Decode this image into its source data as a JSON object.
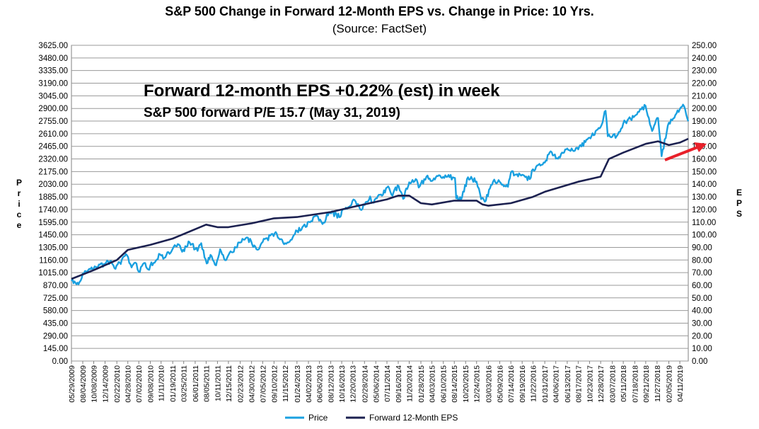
{
  "chart_data": {
    "type": "line",
    "title": "S&P 500 Change in Forward 12-Month EPS vs. Change in Price: 10 Yrs.",
    "subtitle": "(Source: FactSet)",
    "ylabel_left": "Price",
    "ylabel_right": "EPS",
    "ylim_left": [
      0,
      3625
    ],
    "ylim_right": [
      0,
      250
    ],
    "yticks_left": [
      "0.00",
      "145.00",
      "290.00",
      "435.00",
      "580.00",
      "725.00",
      "870.00",
      "1015.00",
      "1160.00",
      "1305.00",
      "1450.00",
      "1595.00",
      "1740.00",
      "1885.00",
      "2030.00",
      "2175.00",
      "2320.00",
      "2465.00",
      "2610.00",
      "2755.00",
      "2900.00",
      "3045.00",
      "3190.00",
      "3335.00",
      "3480.00",
      "3625.00"
    ],
    "yticks_right": [
      "0.00",
      "10.00",
      "20.00",
      "30.00",
      "40.00",
      "50.00",
      "60.00",
      "70.00",
      "80.00",
      "90.00",
      "100.00",
      "110.00",
      "120.00",
      "130.00",
      "140.00",
      "150.00",
      "160.00",
      "170.00",
      "180.00",
      "190.00",
      "200.00",
      "210.00",
      "220.00",
      "230.00",
      "240.00",
      "250.00"
    ],
    "x_dates": [
      "05/29/2009",
      "08/04/2009",
      "10/08/2009",
      "12/14/2009",
      "02/22/2010",
      "04/28/2010",
      "07/02/2010",
      "09/08/2010",
      "11/11/2010",
      "01/19/2011",
      "03/25/2011",
      "06/01/2011",
      "08/05/2011",
      "10/11/2011",
      "12/15/2011",
      "02/23/2012",
      "04/30/2012",
      "07/05/2012",
      "09/10/2012",
      "11/15/2012",
      "01/24/2013",
      "04/02/2013",
      "06/06/2013",
      "08/12/2013",
      "10/16/2013",
      "12/20/2013",
      "02/28/2014",
      "05/06/2014",
      "07/11/2014",
      "09/16/2014",
      "11/20/2014",
      "01/28/2015",
      "04/03/2015",
      "06/10/2015",
      "08/14/2015",
      "10/20/2015",
      "12/24/2015",
      "03/03/2016",
      "05/09/2016",
      "07/14/2016",
      "09/19/2016",
      "11/22/2016",
      "01/31/2017",
      "04/06/2017",
      "06/13/2017",
      "08/17/2017",
      "10/23/2017",
      "12/28/2017",
      "03/07/2018",
      "05/11/2018",
      "07/18/2018",
      "09/21/2018",
      "11/27/2018",
      "02/05/2019",
      "04/11/2019"
    ],
    "series": [
      {
        "name": "Price",
        "axis": "left",
        "color": "#1aa0e0",
        "points": [
          [
            "05/29/2009",
            919
          ],
          [
            "07/10/2009",
            880
          ],
          [
            "08/04/2009",
            1005
          ],
          [
            "10/08/2009",
            1065
          ],
          [
            "12/14/2009",
            1115
          ],
          [
            "01/19/2010",
            1150
          ],
          [
            "02/08/2010",
            1065
          ],
          [
            "04/23/2010",
            1215
          ],
          [
            "05/20/2010",
            1075
          ],
          [
            "06/11/2010",
            1130
          ],
          [
            "07/02/2010",
            1025
          ],
          [
            "08/09/2010",
            1125
          ],
          [
            "08/27/2010",
            1050
          ],
          [
            "09/08/2010",
            1095
          ],
          [
            "11/05/2010",
            1225
          ],
          [
            "11/30/2010",
            1185
          ],
          [
            "01/19/2011",
            1290
          ],
          [
            "02/18/2011",
            1343
          ],
          [
            "03/16/2011",
            1255
          ],
          [
            "04/29/2011",
            1363
          ],
          [
            "06/15/2011",
            1265
          ],
          [
            "07/07/2011",
            1353
          ],
          [
            "08/08/2011",
            1120
          ],
          [
            "08/31/2011",
            1219
          ],
          [
            "10/03/2011",
            1099
          ],
          [
            "10/27/2011",
            1284
          ],
          [
            "11/25/2011",
            1158
          ],
          [
            "12/15/2011",
            1216
          ],
          [
            "02/23/2012",
            1360
          ],
          [
            "04/02/2012",
            1419
          ],
          [
            "06/04/2012",
            1278
          ],
          [
            "07/05/2012",
            1367
          ],
          [
            "09/14/2012",
            1466
          ],
          [
            "11/15/2012",
            1353
          ],
          [
            "12/31/2012",
            1426
          ],
          [
            "01/24/2013",
            1495
          ],
          [
            "04/11/2013",
            1593
          ],
          [
            "05/21/2013",
            1669
          ],
          [
            "06/24/2013",
            1573
          ],
          [
            "08/02/2013",
            1709
          ],
          [
            "10/08/2013",
            1656
          ],
          [
            "10/16/2013",
            1721
          ],
          [
            "12/31/2013",
            1848
          ],
          [
            "02/03/2014",
            1741
          ],
          [
            "04/02/2014",
            1890
          ],
          [
            "04/11/2014",
            1815
          ],
          [
            "05/06/2014",
            1867
          ],
          [
            "07/24/2014",
            1987
          ],
          [
            "08/07/2014",
            1909
          ],
          [
            "09/18/2014",
            2011
          ],
          [
            "10/15/2014",
            1862
          ],
          [
            "11/20/2014",
            2052
          ],
          [
            "12/29/2014",
            2090
          ],
          [
            "01/15/2015",
            1992
          ],
          [
            "03/02/2015",
            2117
          ],
          [
            "04/03/2015",
            2067
          ],
          [
            "05/21/2015",
            2130
          ],
          [
            "08/18/2015",
            2102
          ],
          [
            "08/25/2015",
            1867
          ],
          [
            "09/29/2015",
            1881
          ],
          [
            "11/03/2015",
            2110
          ],
          [
            "12/24/2015",
            2060
          ],
          [
            "01/20/2016",
            1859
          ],
          [
            "02/11/2016",
            1829
          ],
          [
            "03/31/2016",
            2060
          ],
          [
            "05/09/2016",
            2058
          ],
          [
            "06/27/2016",
            2000
          ],
          [
            "07/14/2016",
            2163
          ],
          [
            "09/19/2016",
            2139
          ],
          [
            "11/03/2016",
            2088
          ],
          [
            "11/22/2016",
            2202
          ],
          [
            "01/31/2017",
            2278
          ],
          [
            "03/01/2017",
            2395
          ],
          [
            "04/13/2017",
            2329
          ],
          [
            "06/13/2017",
            2440
          ],
          [
            "08/17/2017",
            2430
          ],
          [
            "10/23/2017",
            2565
          ],
          [
            "12/28/2017",
            2687
          ],
          [
            "01/26/2018",
            2873
          ],
          [
            "02/08/2018",
            2581
          ],
          [
            "04/02/2018",
            2582
          ],
          [
            "05/11/2018",
            2727
          ],
          [
            "07/18/2018",
            2815
          ],
          [
            "09/20/2018",
            2930
          ],
          [
            "10/29/2018",
            2641
          ],
          [
            "12/03/2018",
            2790
          ],
          [
            "12/24/2018",
            2351
          ],
          [
            "02/05/2019",
            2737
          ],
          [
            "04/30/2019",
            2945
          ],
          [
            "05/31/2019",
            2752
          ]
        ]
      },
      {
        "name": "Forward 12-Month EPS",
        "axis": "right",
        "color": "#1c2150",
        "points": [
          [
            "05/29/2009",
            65
          ],
          [
            "10/08/2009",
            72
          ],
          [
            "02/22/2010",
            80
          ],
          [
            "04/28/2010",
            88
          ],
          [
            "09/08/2010",
            92
          ],
          [
            "01/19/2011",
            97
          ],
          [
            "08/05/2011",
            108
          ],
          [
            "10/11/2011",
            106
          ],
          [
            "12/15/2011",
            106
          ],
          [
            "04/30/2012",
            109
          ],
          [
            "09/10/2012",
            113
          ],
          [
            "01/24/2013",
            114
          ],
          [
            "08/12/2013",
            118
          ],
          [
            "12/20/2013",
            122
          ],
          [
            "07/11/2014",
            128
          ],
          [
            "09/16/2014",
            131
          ],
          [
            "11/20/2014",
            131
          ],
          [
            "01/28/2015",
            125
          ],
          [
            "04/03/2015",
            124
          ],
          [
            "08/14/2015",
            127
          ],
          [
            "12/24/2015",
            127
          ],
          [
            "01/28/2016",
            124
          ],
          [
            "03/03/2016",
            123
          ],
          [
            "07/14/2016",
            125
          ],
          [
            "11/22/2016",
            130
          ],
          [
            "01/31/2017",
            134
          ],
          [
            "08/17/2017",
            142
          ],
          [
            "12/28/2017",
            146
          ],
          [
            "02/15/2018",
            160
          ],
          [
            "05/11/2018",
            165
          ],
          [
            "09/21/2018",
            172
          ],
          [
            "12/03/2018",
            174
          ],
          [
            "02/05/2019",
            171
          ],
          [
            "04/11/2019",
            173
          ],
          [
            "05/31/2019",
            176
          ]
        ]
      }
    ],
    "annotations": [
      "Forward 12-month EPS +0.22% (est) in week",
      "S&P 500 forward P/E 15.7 (May 31, 2019)"
    ],
    "grid": true,
    "legend": "bottom-center",
    "arrow_color": "#e8202a"
  }
}
